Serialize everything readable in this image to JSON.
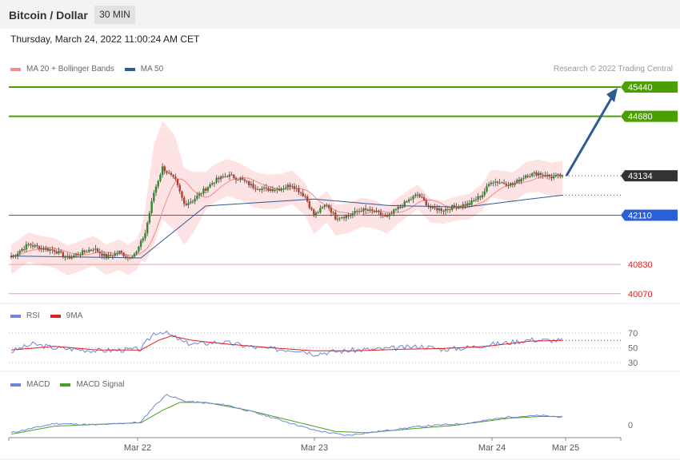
{
  "header": {
    "title": "Bitcoin / Dollar",
    "timeframe": "30 MIN"
  },
  "subtitle": {
    "datetime": "Thursday, March 24, 2022 11:00:24 AM CET"
  },
  "credit": "Research © 2022 Trading Central",
  "legends": {
    "main": [
      {
        "label": "MA 20 + Bollinger Bands",
        "color": "#f48a8a"
      },
      {
        "label": "MA 50",
        "color": "#2f5a94"
      }
    ],
    "rsi": [
      {
        "label": "RSI",
        "color": "#6b86dc"
      },
      {
        "label": "9MA",
        "color": "#e02020"
      }
    ],
    "macd": [
      {
        "label": "MACD",
        "color": "#6b86dc"
      },
      {
        "label": "MACD Signal",
        "color": "#4aa020"
      }
    ]
  },
  "colors": {
    "up": "#2e8b2e",
    "down": "#c0392b",
    "resistance": "#4aa000",
    "pivot": "#2a5fd8",
    "support": "#e02020",
    "current": "#333333",
    "arrow": "#2f5a94",
    "band": "#fde3e3"
  },
  "chart_data": [
    {
      "type": "candlestick",
      "title": "Bitcoin / Dollar",
      "timeframe": "30 MIN",
      "x_ticks": [
        "Mar 22",
        "Mar 23",
        "Mar 24",
        "Mar 25"
      ],
      "ylim": [
        39900,
        45750
      ],
      "levels": [
        {
          "value": 45440,
          "label": "45440",
          "kind": "resistance"
        },
        {
          "value": 44680,
          "label": "44680",
          "kind": "resistance"
        },
        {
          "value": 43134,
          "label": "43134",
          "kind": "current"
        },
        {
          "value": 42110,
          "label": "42110",
          "kind": "pivot"
        },
        {
          "value": 40830,
          "label": "40830",
          "kind": "support"
        },
        {
          "value": 40070,
          "label": "40070",
          "kind": "support"
        }
      ],
      "last_price": 43134,
      "forecast_target": 45440,
      "anchors": [
        [
          0,
          41020
        ],
        [
          8,
          41350
        ],
        [
          14,
          41250
        ],
        [
          20,
          41200
        ],
        [
          26,
          41000
        ],
        [
          32,
          41120
        ],
        [
          38,
          41250
        ],
        [
          44,
          41020
        ],
        [
          50,
          41150
        ],
        [
          54,
          41020
        ],
        [
          58,
          41150
        ],
        [
          62,
          41650
        ],
        [
          66,
          42700
        ],
        [
          70,
          43350
        ],
        [
          76,
          43000
        ],
        [
          80,
          42400
        ],
        [
          84,
          42500
        ],
        [
          88,
          42700
        ],
        [
          94,
          43000
        ],
        [
          100,
          43150
        ],
        [
          106,
          43050
        ],
        [
          112,
          42850
        ],
        [
          118,
          42780
        ],
        [
          124,
          42800
        ],
        [
          130,
          42900
        ],
        [
          136,
          42600
        ],
        [
          140,
          42100
        ],
        [
          146,
          42400
        ],
        [
          150,
          42050
        ],
        [
          156,
          42100
        ],
        [
          162,
          42250
        ],
        [
          168,
          42200
        ],
        [
          174,
          42050
        ],
        [
          178,
          42250
        ],
        [
          184,
          42500
        ],
        [
          188,
          42650
        ],
        [
          194,
          42300
        ],
        [
          200,
          42250
        ],
        [
          206,
          42350
        ],
        [
          212,
          42400
        ],
        [
          218,
          42650
        ],
        [
          222,
          43000
        ],
        [
          228,
          42950
        ],
        [
          232,
          42900
        ],
        [
          238,
          43150
        ],
        [
          244,
          43200
        ],
        [
          250,
          43100
        ],
        [
          255,
          43134
        ]
      ],
      "ma20_delta": -220,
      "ma50": [
        [
          0,
          41050
        ],
        [
          60,
          41000
        ],
        [
          90,
          42350
        ],
        [
          140,
          42530
        ],
        [
          175,
          42360
        ],
        [
          210,
          42320
        ],
        [
          240,
          42530
        ],
        [
          255,
          42630
        ]
      ],
      "bollinger_width": [
        [
          0,
          380
        ],
        [
          60,
          400
        ],
        [
          66,
          1300
        ],
        [
          75,
          1250
        ],
        [
          90,
          500
        ],
        [
          140,
          420
        ],
        [
          200,
          300
        ],
        [
          255,
          450
        ]
      ]
    },
    {
      "type": "line",
      "name": "RSI",
      "ylim": [
        20,
        80
      ],
      "ref_lines": [
        70,
        50,
        30
      ],
      "y_ticks": [
        "70",
        "50",
        "30"
      ],
      "rsi": [
        [
          0,
          45
        ],
        [
          10,
          55
        ],
        [
          20,
          50
        ],
        [
          30,
          48
        ],
        [
          40,
          46
        ],
        [
          50,
          47
        ],
        [
          60,
          48
        ],
        [
          66,
          70
        ],
        [
          70,
          72
        ],
        [
          76,
          64
        ],
        [
          80,
          57
        ],
        [
          86,
          55
        ],
        [
          96,
          58
        ],
        [
          104,
          55
        ],
        [
          114,
          50
        ],
        [
          124,
          48
        ],
        [
          134,
          47
        ],
        [
          140,
          42
        ],
        [
          150,
          45
        ],
        [
          160,
          47
        ],
        [
          170,
          48
        ],
        [
          180,
          50
        ],
        [
          190,
          52
        ],
        [
          200,
          48
        ],
        [
          210,
          50
        ],
        [
          220,
          54
        ],
        [
          230,
          57
        ],
        [
          240,
          61
        ],
        [
          250,
          60
        ],
        [
          255,
          60
        ]
      ],
      "ma9": [
        [
          0,
          47
        ],
        [
          20,
          52
        ],
        [
          40,
          47
        ],
        [
          60,
          47
        ],
        [
          68,
          60
        ],
        [
          74,
          66
        ],
        [
          84,
          60
        ],
        [
          100,
          55
        ],
        [
          120,
          50
        ],
        [
          140,
          46
        ],
        [
          160,
          46
        ],
        [
          180,
          48
        ],
        [
          200,
          49
        ],
        [
          220,
          52
        ],
        [
          240,
          59
        ],
        [
          255,
          60
        ]
      ]
    },
    {
      "type": "line",
      "name": "MACD",
      "y_ticks": [
        "0"
      ],
      "macd": [
        [
          0,
          -300
        ],
        [
          20,
          50
        ],
        [
          40,
          0
        ],
        [
          60,
          100
        ],
        [
          66,
          700
        ],
        [
          72,
          1150
        ],
        [
          80,
          900
        ],
        [
          100,
          750
        ],
        [
          120,
          300
        ],
        [
          140,
          -200
        ],
        [
          155,
          -400
        ],
        [
          175,
          -200
        ],
        [
          190,
          -50
        ],
        [
          210,
          50
        ],
        [
          230,
          300
        ],
        [
          245,
          350
        ],
        [
          255,
          300
        ]
      ],
      "signal": [
        [
          0,
          -350
        ],
        [
          20,
          -50
        ],
        [
          40,
          20
        ],
        [
          60,
          80
        ],
        [
          70,
          550
        ],
        [
          78,
          850
        ],
        [
          90,
          850
        ],
        [
          110,
          550
        ],
        [
          130,
          150
        ],
        [
          150,
          -250
        ],
        [
          165,
          -300
        ],
        [
          185,
          -150
        ],
        [
          205,
          -20
        ],
        [
          230,
          250
        ],
        [
          245,
          320
        ],
        [
          255,
          310
        ]
      ]
    }
  ]
}
